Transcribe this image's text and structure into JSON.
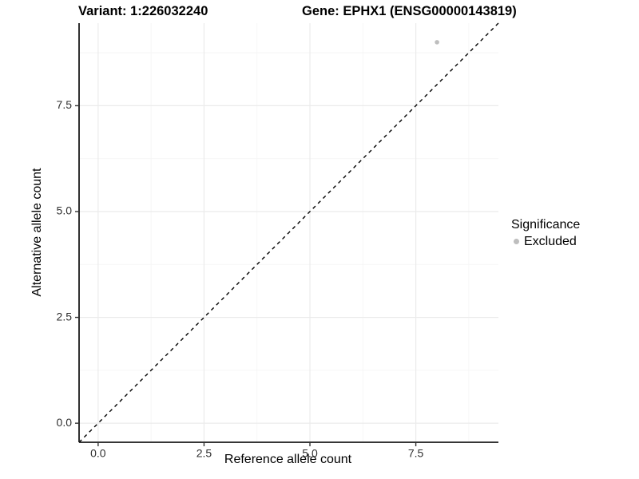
{
  "chart_data": {
    "type": "scatter",
    "title_left": "Variant: 1:226032240",
    "title_right": "Gene: EPHX1 (ENSG00000143819)",
    "xlabel": "Reference allele count",
    "ylabel": "Alternative allele count",
    "xlim": [
      -0.45,
      9.45
    ],
    "ylim": [
      -0.45,
      9.45
    ],
    "x_ticks": [
      0,
      2.5,
      5,
      7.5
    ],
    "x_tick_labels": [
      "0.0",
      "2.5",
      "5.0",
      "7.5"
    ],
    "x_minor_ticks": [
      1.25,
      3.75,
      6.25,
      8.75
    ],
    "y_ticks": [
      0,
      2.5,
      5,
      7.5
    ],
    "y_tick_labels": [
      "0.0",
      "2.5",
      "5.0",
      "7.5"
    ],
    "y_minor_ticks": [
      1.25,
      3.75,
      6.25,
      8.75
    ],
    "grid": "major+minor",
    "points": [
      {
        "x": 8,
        "y": 9,
        "series": "Excluded"
      }
    ],
    "reference_line": {
      "slope": 1,
      "intercept": 0,
      "style": "dashed",
      "color": "#000000"
    },
    "legend": {
      "title": "Significance",
      "position": "right",
      "items": [
        {
          "label": "Excluded",
          "color": "#bebebe"
        }
      ]
    },
    "style": {
      "background": "#ffffff",
      "point_color": "#bebebe",
      "point_radius": 2.8,
      "legend_dot_color": "#bebebe",
      "grid_major_color": "#ebebeb",
      "grid_minor_color": "#f5f5f5",
      "axis_line_color": "#1a1a1a",
      "tick_color": "#333333",
      "tick_label_color": "#303030"
    }
  }
}
